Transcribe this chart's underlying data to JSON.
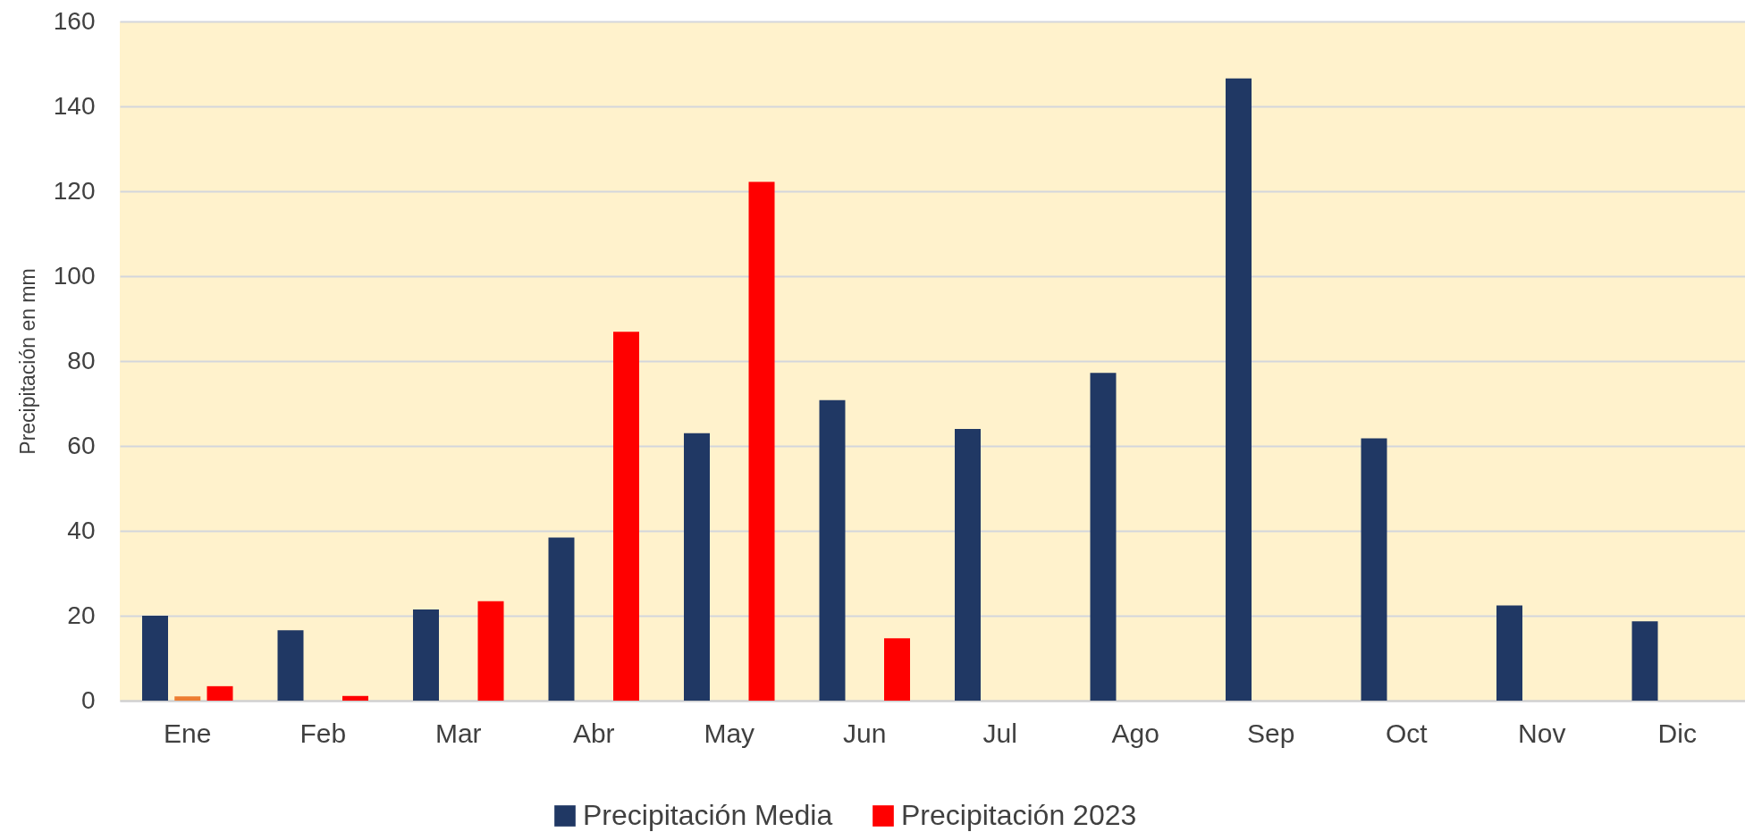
{
  "chart_data": {
    "type": "bar",
    "ylabel": "Precipitación en mm",
    "categories": [
      "Ene",
      "Feb",
      "Mar",
      "Abr",
      "May",
      "Jun",
      "Jul",
      "Ago",
      "Sep",
      "Oct",
      "Nov",
      "Dic"
    ],
    "series": [
      {
        "name": "Precipitación Media",
        "color": "#203864",
        "values": [
          20.0,
          16.6,
          21.5,
          38.4,
          63.0,
          70.8,
          64.0,
          77.2,
          146.6,
          61.8,
          22.4,
          18.7
        ]
      },
      {
        "color": "#ed7d31",
        "values": [
          1.0,
          null,
          null,
          null,
          null,
          null,
          null,
          null,
          null,
          null,
          null,
          null
        ]
      },
      {
        "name": "Precipitación 2023",
        "color": "#ff0000",
        "values": [
          3.4,
          1.1,
          23.4,
          86.9,
          122.2,
          14.7,
          null,
          null,
          null,
          null,
          null,
          null
        ]
      }
    ],
    "ylim": [
      0,
      160
    ],
    "yticks": [
      0,
      20,
      40,
      60,
      80,
      100,
      120,
      140,
      160
    ],
    "grid": "y",
    "legend": "bottom"
  }
}
